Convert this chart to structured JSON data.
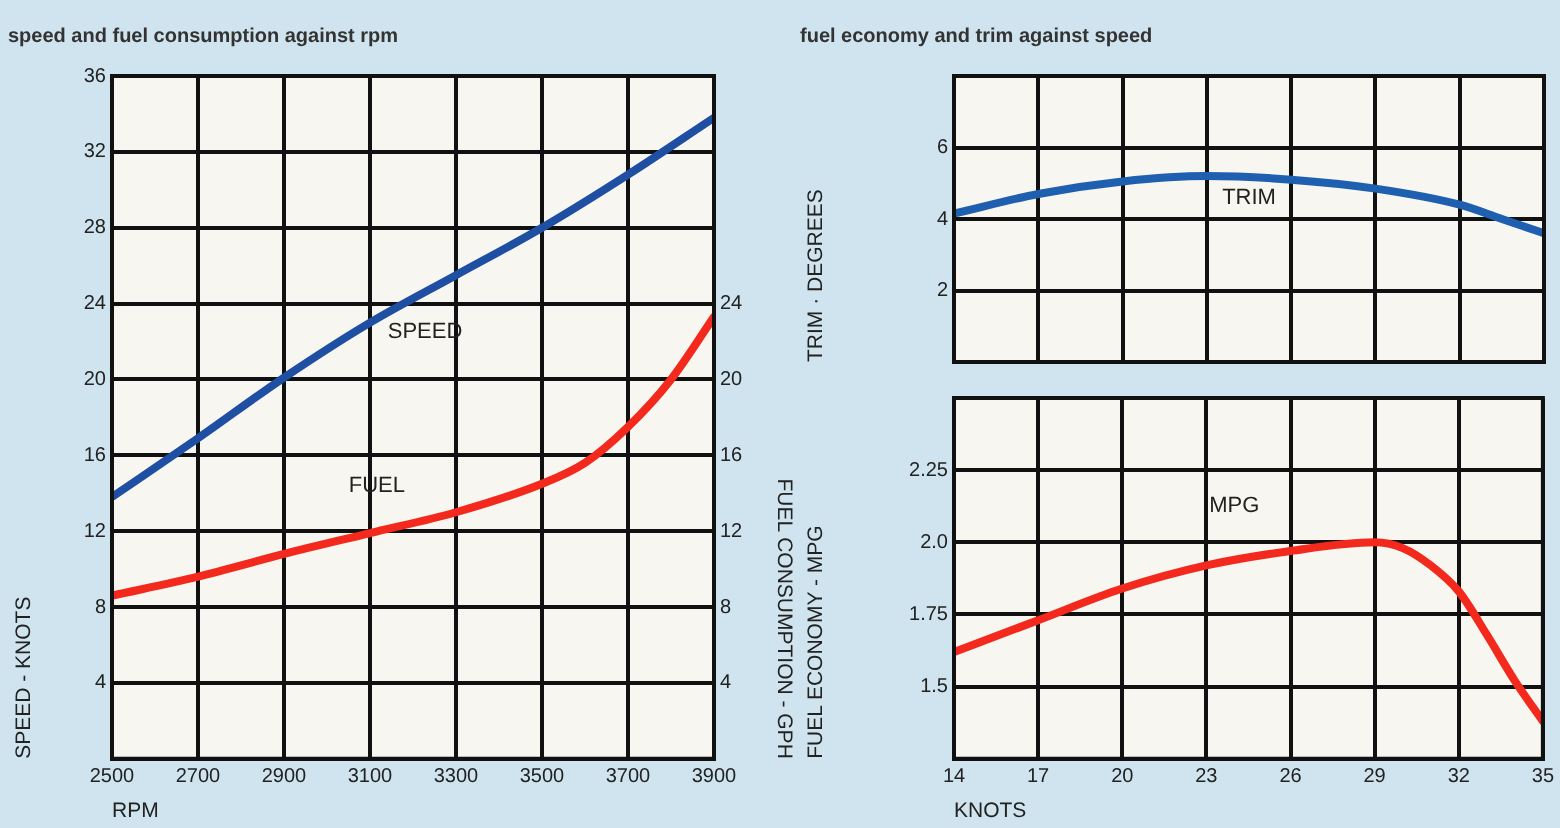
{
  "chart_data": [
    {
      "type": "line",
      "title": "speed and fuel consumption against rpm",
      "xlabel": "RPM",
      "ylabel": "SPEED - KNOTS",
      "y2label": "FUEL CONSUMPTION - GPH",
      "xlim": [
        2500,
        3900
      ],
      "xticks": [
        2500,
        2700,
        2900,
        3100,
        3300,
        3500,
        3700,
        3900
      ],
      "ylim": [
        0,
        36
      ],
      "yticks": [
        4,
        8,
        12,
        16,
        20,
        24,
        28,
        32,
        36
      ],
      "y2lim": [
        0,
        36
      ],
      "y2ticks": [
        4,
        8,
        12,
        16,
        20,
        24
      ],
      "grid": true,
      "legend": false,
      "marker": "none",
      "line_style": "solid",
      "series": [
        {
          "name": "SPEED",
          "color": "#1f4fa3",
          "x": [
            2500,
            2700,
            2900,
            3100,
            3300,
            3500,
            3700,
            3900
          ],
          "values": [
            13.8,
            16.9,
            20.1,
            23,
            25.5,
            28,
            30.8,
            33.8
          ]
        },
        {
          "name": "FUEL",
          "color": "#f2291c",
          "axis": "y2",
          "x": [
            2500,
            2700,
            2900,
            3100,
            3300,
            3500,
            3600,
            3700,
            3800,
            3900
          ],
          "values": [
            8.6,
            9.6,
            10.8,
            11.9,
            13,
            14.5,
            15.6,
            17.5,
            20,
            23.3
          ]
        }
      ]
    },
    {
      "type": "line",
      "title": "fuel economy and trim against speed",
      "ylabel": "TRIM · DEGREES",
      "xlim": [
        14,
        35
      ],
      "xticks": [
        14,
        17,
        20,
        23,
        26,
        29,
        32,
        35
      ],
      "ylim": [
        0,
        8
      ],
      "yticks": [
        2,
        4,
        6
      ],
      "tick_labels": "y",
      "grid": true,
      "legend": false,
      "marker": "none",
      "line_style": "solid",
      "series": [
        {
          "name": "TRIM",
          "color": "#1f5fb0",
          "x": [
            14,
            17,
            20,
            23,
            26,
            29,
            32,
            33.5,
            35
          ],
          "values": [
            4.15,
            4.7,
            5.05,
            5.2,
            5.1,
            4.85,
            4.4,
            4,
            3.6
          ]
        }
      ]
    },
    {
      "type": "line",
      "xlabel": "KNOTS",
      "ylabel": "FUEL ECONOMY - MPG",
      "xlim": [
        14,
        35
      ],
      "xticks": [
        14,
        17,
        20,
        23,
        26,
        29,
        32,
        35
      ],
      "ylim": [
        1.25,
        2.5
      ],
      "yticks": [
        1.5,
        1.75,
        {
          "value": 2,
          "label": "2.0"
        },
        2.25
      ],
      "grid": true,
      "legend": false,
      "marker": "none",
      "line_style": "solid",
      "series": [
        {
          "name": "MPG",
          "color": "#f2291c",
          "x": [
            14,
            17,
            20,
            23,
            26,
            29,
            30,
            31,
            32,
            33,
            34,
            35
          ],
          "values": [
            1.62,
            1.73,
            1.84,
            1.92,
            1.97,
            2,
            1.98,
            1.92,
            1.83,
            1.68,
            1.52,
            1.38
          ]
        }
      ]
    }
  ]
}
